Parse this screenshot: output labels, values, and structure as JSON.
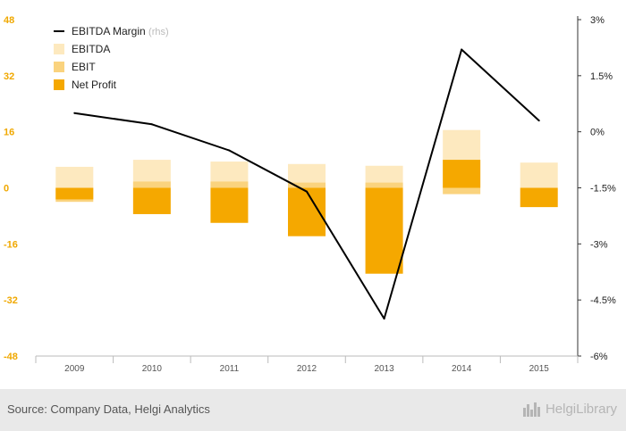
{
  "chart_data": {
    "type": "bar",
    "categories": [
      "2009",
      "2010",
      "2011",
      "2012",
      "2013",
      "2014",
      "2015"
    ],
    "series": [
      {
        "name": "EBITDA",
        "axis": "left",
        "color": "#fde9bf",
        "values": [
          6,
          8,
          7.5,
          6.8,
          6.3,
          16.5,
          7.2
        ]
      },
      {
        "name": "EBIT",
        "axis": "left",
        "color": "#fad37e",
        "values": [
          -4,
          1.8,
          1.8,
          1.5,
          1.5,
          -1.8,
          0
        ]
      },
      {
        "name": "Net Profit",
        "axis": "left",
        "color": "#f5a800",
        "values": [
          -3.3,
          -7.5,
          -10,
          -13.8,
          -24.5,
          8,
          -5.5
        ]
      },
      {
        "name": "EBITDA Margin",
        "note": "(rhs)",
        "axis": "right",
        "type": "line",
        "color": "#000000",
        "values": [
          0.5,
          0.2,
          -0.5,
          -1.6,
          -5.0,
          2.2,
          0.3
        ]
      }
    ],
    "left_axis": {
      "ticks": [
        48,
        32,
        16,
        0,
        -16,
        -32,
        -48
      ],
      "labels": [
        "48",
        "32",
        "16",
        "0",
        "-16",
        "-32",
        "-48"
      ],
      "range": [
        -48,
        48
      ]
    },
    "right_axis": {
      "ticks": [
        3,
        1.5,
        0,
        -1.5,
        -3,
        -4.5,
        -6
      ],
      "labels": [
        "3%",
        "1.5%",
        "0%",
        "-1.5%",
        "-3%",
        "-4.5%",
        "-6%"
      ],
      "range": [
        -6,
        3
      ]
    },
    "legend_placement": "top-left",
    "grid": false
  },
  "footer": {
    "source": "Source: Company Data, Helgi Analytics",
    "brand": "HelgiLibrary",
    "brand_icon": "city-skyline-icon"
  }
}
